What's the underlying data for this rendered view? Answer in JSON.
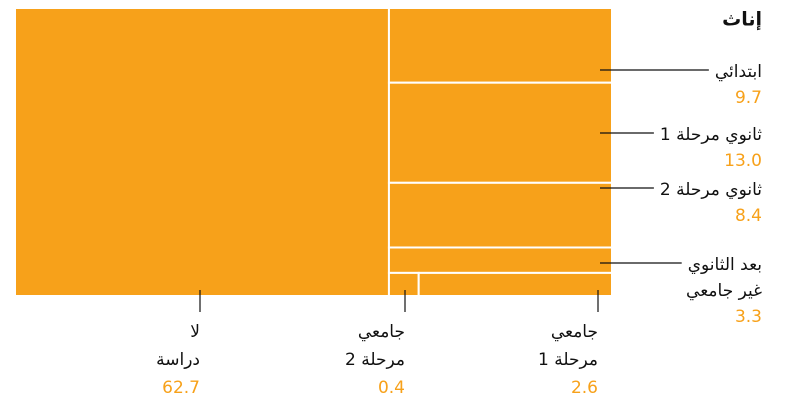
{
  "chart_data": {
    "type": "treemap",
    "title": "إناث",
    "color": "#f7a11a",
    "items": [
      {
        "label": [
          "لا",
          "دراسة"
        ],
        "value": 62.7,
        "value_label": "62.7"
      },
      {
        "label": [
          "ابتدائي"
        ],
        "value": 9.7,
        "value_label": "9.7"
      },
      {
        "label": [
          "ثانوي مرحلة 1"
        ],
        "value": 13.0,
        "value_label": "13.0"
      },
      {
        "label": [
          "ثانوي مرحلة 2"
        ],
        "value": 8.4,
        "value_label": "8.4"
      },
      {
        "label": [
          "بعد الثانوي",
          "غير جامعي"
        ],
        "value": 3.3,
        "value_label": "3.3"
      },
      {
        "label": [
          "جامعي",
          "مرحلة 2"
        ],
        "value": 0.4,
        "value_label": "0.4"
      },
      {
        "label": [
          "جامعي",
          "مرحلة 1"
        ],
        "value": 2.6,
        "value_label": "2.6"
      }
    ]
  }
}
